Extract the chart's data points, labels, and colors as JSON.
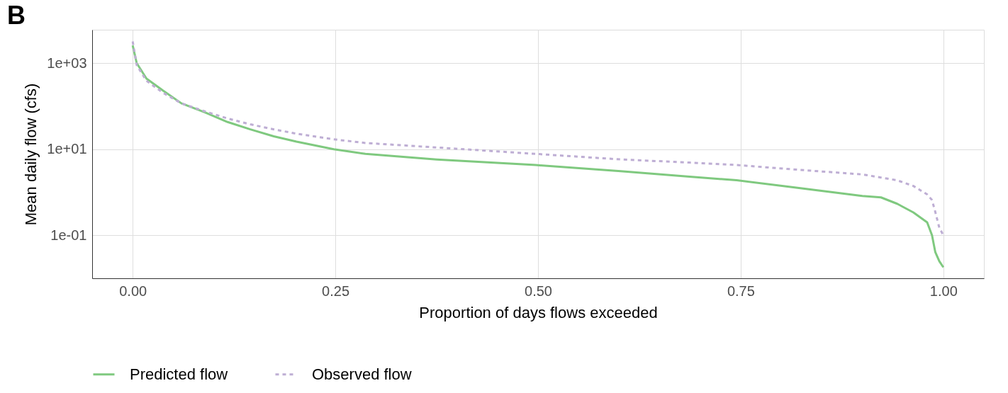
{
  "chart_data": {
    "type": "line",
    "title": "B",
    "xlabel": "Proportion of days flows exceeded",
    "ylabel": "Mean daily flow (cfs)",
    "log": "y",
    "grid": true,
    "legend": "bottom",
    "xlim": [
      -0.05,
      1.05
    ],
    "xticks": [
      {
        "value": 0,
        "label": "0.00"
      },
      {
        "value": 0.25,
        "label": "0.25"
      },
      {
        "value": 0.5,
        "label": "0.50"
      },
      {
        "value": 0.75,
        "label": "0.75"
      },
      {
        "value": 1,
        "label": "1.00"
      }
    ],
    "ylim": [
      0.01,
      6000
    ],
    "yticks": [
      {
        "value": 0.1,
        "label": "1e-01"
      },
      {
        "value": 10,
        "label": "1e+01"
      },
      {
        "value": 1000,
        "label": "1e+03"
      }
    ],
    "series": [
      {
        "name": "Predicted flow",
        "color": "#7fc97f",
        "line_style": "solid",
        "x": [
          0,
          0.005,
          0.017,
          0.0375,
          0.06,
          0.089,
          0.117,
          0.145,
          0.174,
          0.202,
          0.248,
          0.287,
          0.375,
          0.497,
          0.602,
          0.687,
          0.745,
          0.815,
          0.9,
          0.923,
          0.943,
          0.963,
          0.98,
          0.986,
          0.99,
          0.995,
          1
        ],
        "values": [
          2600,
          1000,
          440,
          230,
          117,
          72,
          43,
          29,
          20,
          15,
          10,
          7.8,
          5.8,
          4.3,
          3.1,
          2.3,
          1.9,
          1.3,
          0.82,
          0.76,
          0.54,
          0.34,
          0.2,
          0.1,
          0.041,
          0.025,
          0.018
        ]
      },
      {
        "name": "Observed flow",
        "color": "#beaed4",
        "line_style": "dashed",
        "x": [
          0,
          0.005,
          0.017,
          0.0375,
          0.06,
          0.089,
          0.117,
          0.145,
          0.174,
          0.202,
          0.248,
          0.287,
          0.375,
          0.497,
          0.602,
          0.687,
          0.745,
          0.815,
          0.9,
          0.923,
          0.943,
          0.963,
          0.98,
          0.986,
          0.99,
          0.995,
          1
        ],
        "values": [
          3200,
          900,
          390,
          205,
          117,
          76,
          52,
          38,
          29,
          23,
          17,
          14,
          11,
          7.8,
          5.8,
          4.9,
          4.3,
          3.4,
          2.6,
          2.2,
          1.9,
          1.4,
          0.89,
          0.66,
          0.35,
          0.15,
          0.1
        ]
      }
    ]
  }
}
